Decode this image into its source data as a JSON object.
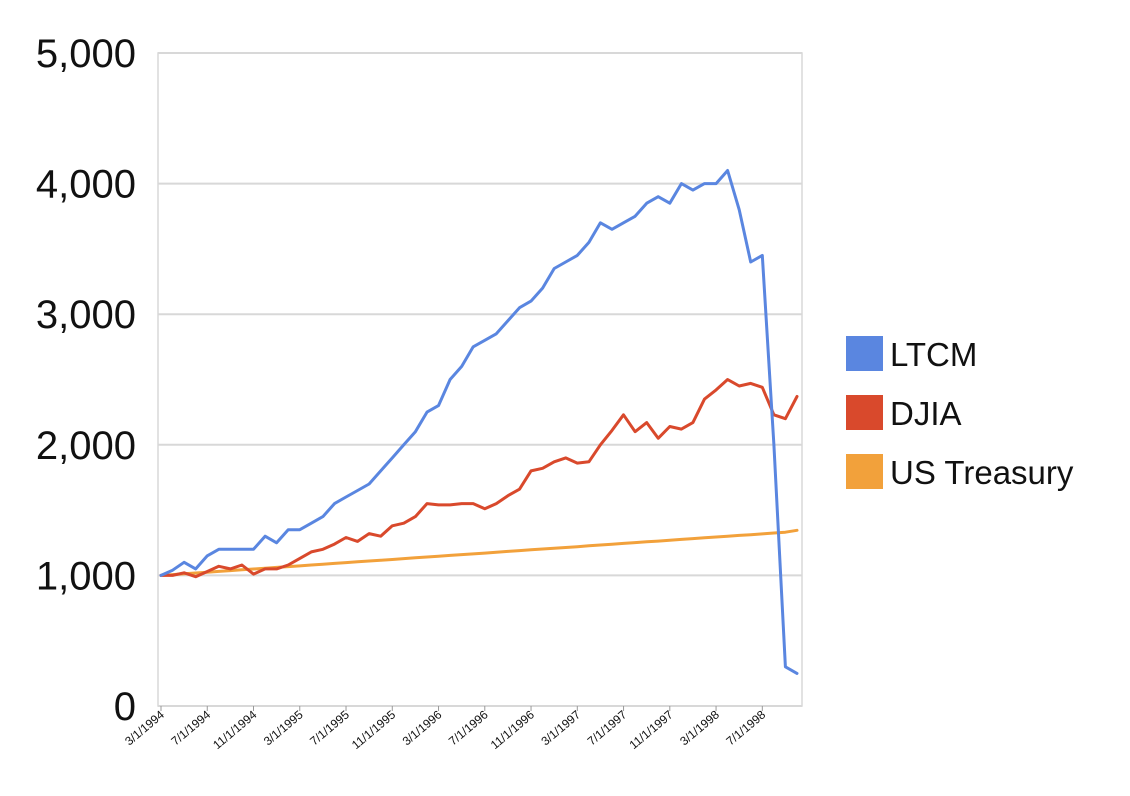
{
  "chart_data": {
    "type": "line",
    "title": "",
    "xlabel": "",
    "ylabel": "",
    "ylim": [
      0,
      5000
    ],
    "yticks": [
      "0",
      "1,000",
      "2,000",
      "3,000",
      "4,000",
      "5,000"
    ],
    "x_tick_labels": [
      "3/1/1994",
      "7/1/1994",
      "11/1/1994",
      "3/1/1995",
      "7/1/1995",
      "11/1/1995",
      "3/1/1996",
      "7/1/1996",
      "11/1/1996",
      "3/1/1997",
      "7/1/1997",
      "11/1/1997",
      "3/1/1998",
      "7/1/1998"
    ],
    "x_start": "1994-03",
    "x_end": "1998-10",
    "legend_position": "right",
    "grid": true,
    "series": [
      {
        "name": "LTCM",
        "color": "#5a86e0",
        "values": [
          1000,
          1040,
          1100,
          1050,
          1150,
          1200,
          1200,
          1200,
          1200,
          1300,
          1250,
          1350,
          1350,
          1400,
          1450,
          1550,
          1600,
          1650,
          1700,
          1800,
          1900,
          2000,
          2100,
          2250,
          2300,
          2500,
          2600,
          2750,
          2800,
          2850,
          2950,
          3050,
          3100,
          3200,
          3350,
          3400,
          3450,
          3550,
          3700,
          3650,
          3700,
          3750,
          3850,
          3900,
          3850,
          4000,
          3950,
          4000,
          4000,
          4100,
          3800,
          3400,
          3450,
          2000,
          300,
          250
        ]
      },
      {
        "name": "DJIA",
        "color": "#d9492c",
        "values": [
          1000,
          1000,
          1020,
          990,
          1030,
          1070,
          1050,
          1080,
          1010,
          1050,
          1050,
          1080,
          1130,
          1180,
          1200,
          1240,
          1290,
          1260,
          1320,
          1300,
          1380,
          1400,
          1450,
          1550,
          1540,
          1540,
          1550,
          1550,
          1510,
          1550,
          1610,
          1660,
          1800,
          1820,
          1870,
          1900,
          1860,
          1870,
          2000,
          2110,
          2230,
          2100,
          2170,
          2050,
          2140,
          2120,
          2170,
          2350,
          2420,
          2500,
          2450,
          2470,
          2440,
          2230,
          2200,
          2370
        ]
      },
      {
        "name": "US Treasury",
        "color": "#f2a13b",
        "values": [
          1000,
          1006,
          1012,
          1018,
          1024,
          1031,
          1037,
          1043,
          1049,
          1055,
          1061,
          1067,
          1073,
          1080,
          1086,
          1092,
          1098,
          1104,
          1110,
          1116,
          1122,
          1129,
          1135,
          1141,
          1147,
          1153,
          1159,
          1165,
          1171,
          1178,
          1184,
          1190,
          1196,
          1202,
          1208,
          1214,
          1220,
          1227,
          1233,
          1239,
          1245,
          1251,
          1257,
          1263,
          1269,
          1276,
          1282,
          1288,
          1294,
          1300,
          1306,
          1312,
          1318,
          1325,
          1331,
          1345
        ]
      }
    ]
  }
}
